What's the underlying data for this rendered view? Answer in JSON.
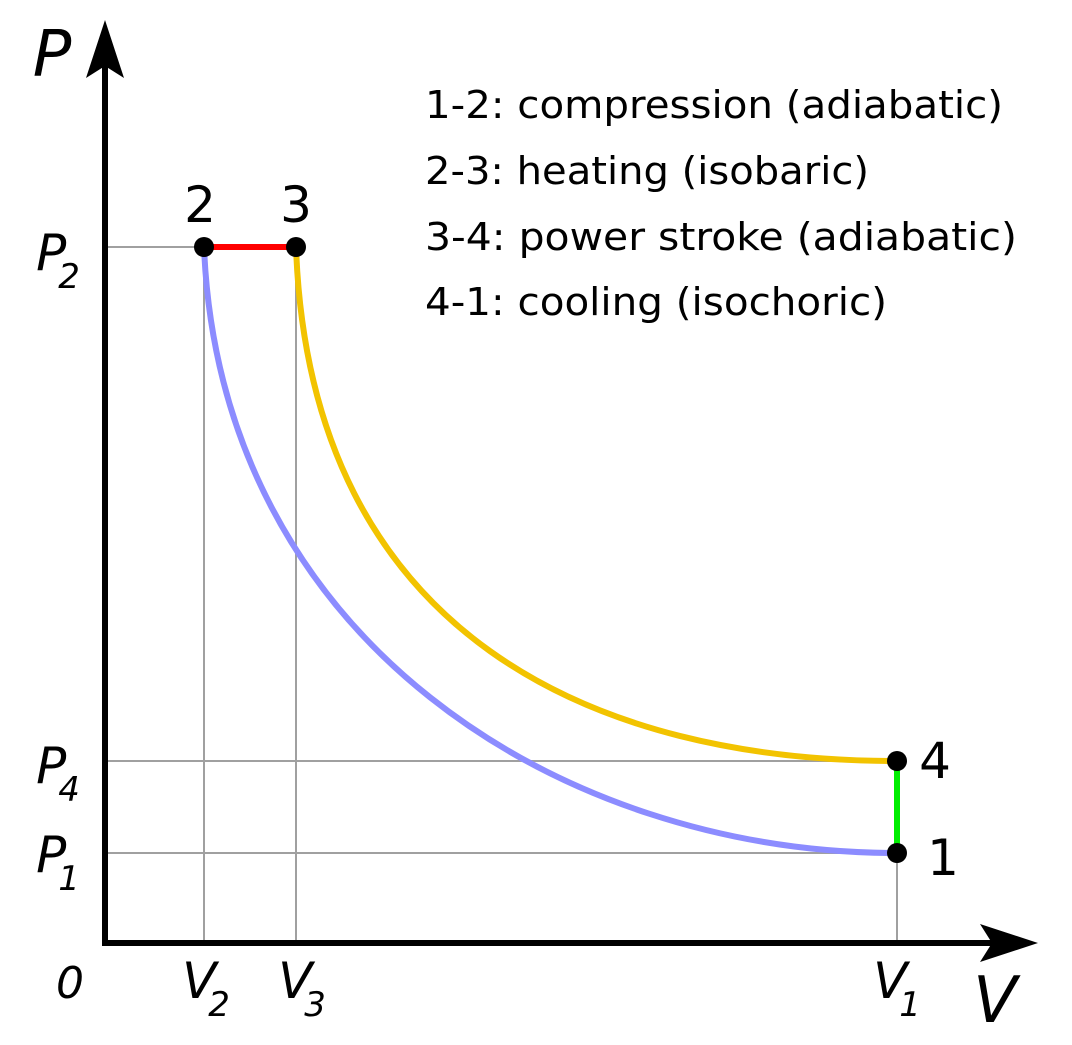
{
  "axes": {
    "y_label": "P",
    "x_label": "V",
    "origin_label": "0"
  },
  "pressure_ticks": {
    "p2": {
      "base": "P",
      "sub": "2"
    },
    "p4": {
      "base": "P",
      "sub": "4"
    },
    "p1": {
      "base": "P",
      "sub": "1"
    }
  },
  "volume_ticks": {
    "v2": {
      "base": "V",
      "sub": "2"
    },
    "v3": {
      "base": "V",
      "sub": "3"
    },
    "v1": {
      "base": "V",
      "sub": "1"
    }
  },
  "points": {
    "p1": "1",
    "p2": "2",
    "p3": "3",
    "p4": "4"
  },
  "legend": [
    "1-2: compression (adiabatic)",
    "2-3: heating (isobaric)",
    "3-4: power stroke (adiabatic)",
    "4-1: cooling (isochoric)"
  ],
  "colors": {
    "compression": "#8c8cff",
    "heating": "#ff0000",
    "power_stroke": "#f2c300",
    "cooling": "#00ee00",
    "grid": "#a0a0a0",
    "axis": "#000000"
  }
}
